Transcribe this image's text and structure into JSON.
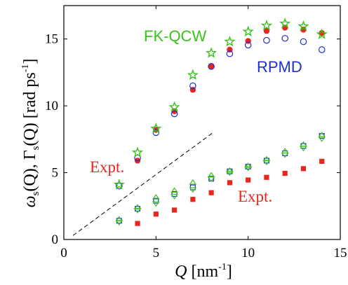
{
  "chart_data": {
    "type": "scatter",
    "xlabel": {
      "var": "Q",
      "unit": " [nm",
      "sup": "-1",
      "close": "]"
    },
    "ylabel": {
      "w": "ω",
      "ws": "s",
      "wq": "(Q), Γ",
      "gs": "s",
      "gq": "(Q) [rad ps",
      "sup": "-1",
      "close": "]"
    },
    "xlim": [
      0,
      15
    ],
    "ylim": [
      0,
      17.5
    ],
    "xticks": [
      0,
      5,
      10,
      15
    ],
    "yticks": [
      0,
      5,
      10,
      15
    ],
    "grid": false,
    "colors": {
      "red": "#e8251f",
      "blue": "#1f2fd1",
      "green": "#39c21a"
    },
    "annotations": [
      {
        "text": "FK-QCW",
        "color": "#39c21a"
      },
      {
        "text": "RPMD",
        "color": "#1f2fd1"
      },
      {
        "text": "Expt.",
        "color": "#e8251f",
        "where": "left"
      },
      {
        "text": "Expt.",
        "color": "#e8251f",
        "where": "right"
      }
    ],
    "reference_line": {
      "style": "dashed",
      "x": [
        0.5,
        8.1
      ],
      "y": [
        0.3,
        8.0
      ]
    },
    "series": [
      {
        "marker": "filled-circle",
        "color": "#e8251f",
        "x": [
          4,
          5,
          6,
          7,
          8,
          9,
          10,
          11,
          12,
          13,
          14
        ],
        "y": [
          5.9,
          8.2,
          9.6,
          11.2,
          12.95,
          14.2,
          14.85,
          15.6,
          15.85,
          15.7,
          15.45
        ]
      },
      {
        "marker": "open-circle",
        "color": "#1f2fd1",
        "x": [
          3,
          4,
          5,
          6,
          7,
          8,
          9,
          10,
          11,
          12,
          13,
          14
        ],
        "y": [
          4.0,
          6.1,
          8.0,
          9.4,
          11.5,
          12.95,
          13.9,
          14.55,
          14.9,
          15.05,
          14.8,
          14.2
        ]
      },
      {
        "marker": "open-star",
        "color": "#39c21a",
        "x": [
          3,
          4,
          5,
          6,
          7,
          8,
          9,
          10,
          11,
          12,
          13,
          14
        ],
        "y": [
          4.1,
          6.5,
          8.3,
          9.9,
          12.3,
          13.95,
          14.8,
          15.55,
          16.0,
          16.15,
          15.95,
          15.35
        ]
      },
      {
        "marker": "filled-square",
        "color": "#e8251f",
        "x": [
          4,
          5,
          6,
          7,
          8,
          9,
          10,
          11,
          12,
          13,
          14
        ],
        "y": [
          1.2,
          1.9,
          2.2,
          3.0,
          3.5,
          4.25,
          4.45,
          4.65,
          4.95,
          5.3,
          5.85
        ]
      },
      {
        "marker": "open-square",
        "color": "#1f2fd1",
        "x": [
          3,
          4,
          5,
          6,
          7,
          8,
          9,
          10,
          11,
          12,
          13,
          14
        ],
        "y": [
          1.4,
          2.3,
          2.9,
          3.4,
          3.9,
          4.55,
          5.1,
          5.45,
          5.9,
          6.45,
          7.0,
          7.75
        ]
      },
      {
        "marker": "open-triangle-down",
        "color": "#39c21a",
        "x": [
          3,
          4,
          5,
          6,
          7,
          8,
          9,
          10,
          11,
          12,
          13,
          14
        ],
        "y": [
          1.3,
          2.2,
          2.7,
          3.25,
          3.75,
          4.55,
          5.0,
          5.35,
          5.8,
          6.35,
          6.85,
          7.55
        ]
      },
      {
        "marker": "open-triangle-up",
        "color": "#39c21a",
        "x": [
          3,
          4,
          5,
          6,
          7,
          8,
          9,
          10,
          11,
          12,
          13,
          14
        ],
        "y": [
          1.5,
          2.4,
          3.15,
          3.65,
          4.25,
          4.8,
          5.15,
          5.5,
          6.0,
          6.6,
          7.1,
          7.8
        ]
      }
    ]
  }
}
